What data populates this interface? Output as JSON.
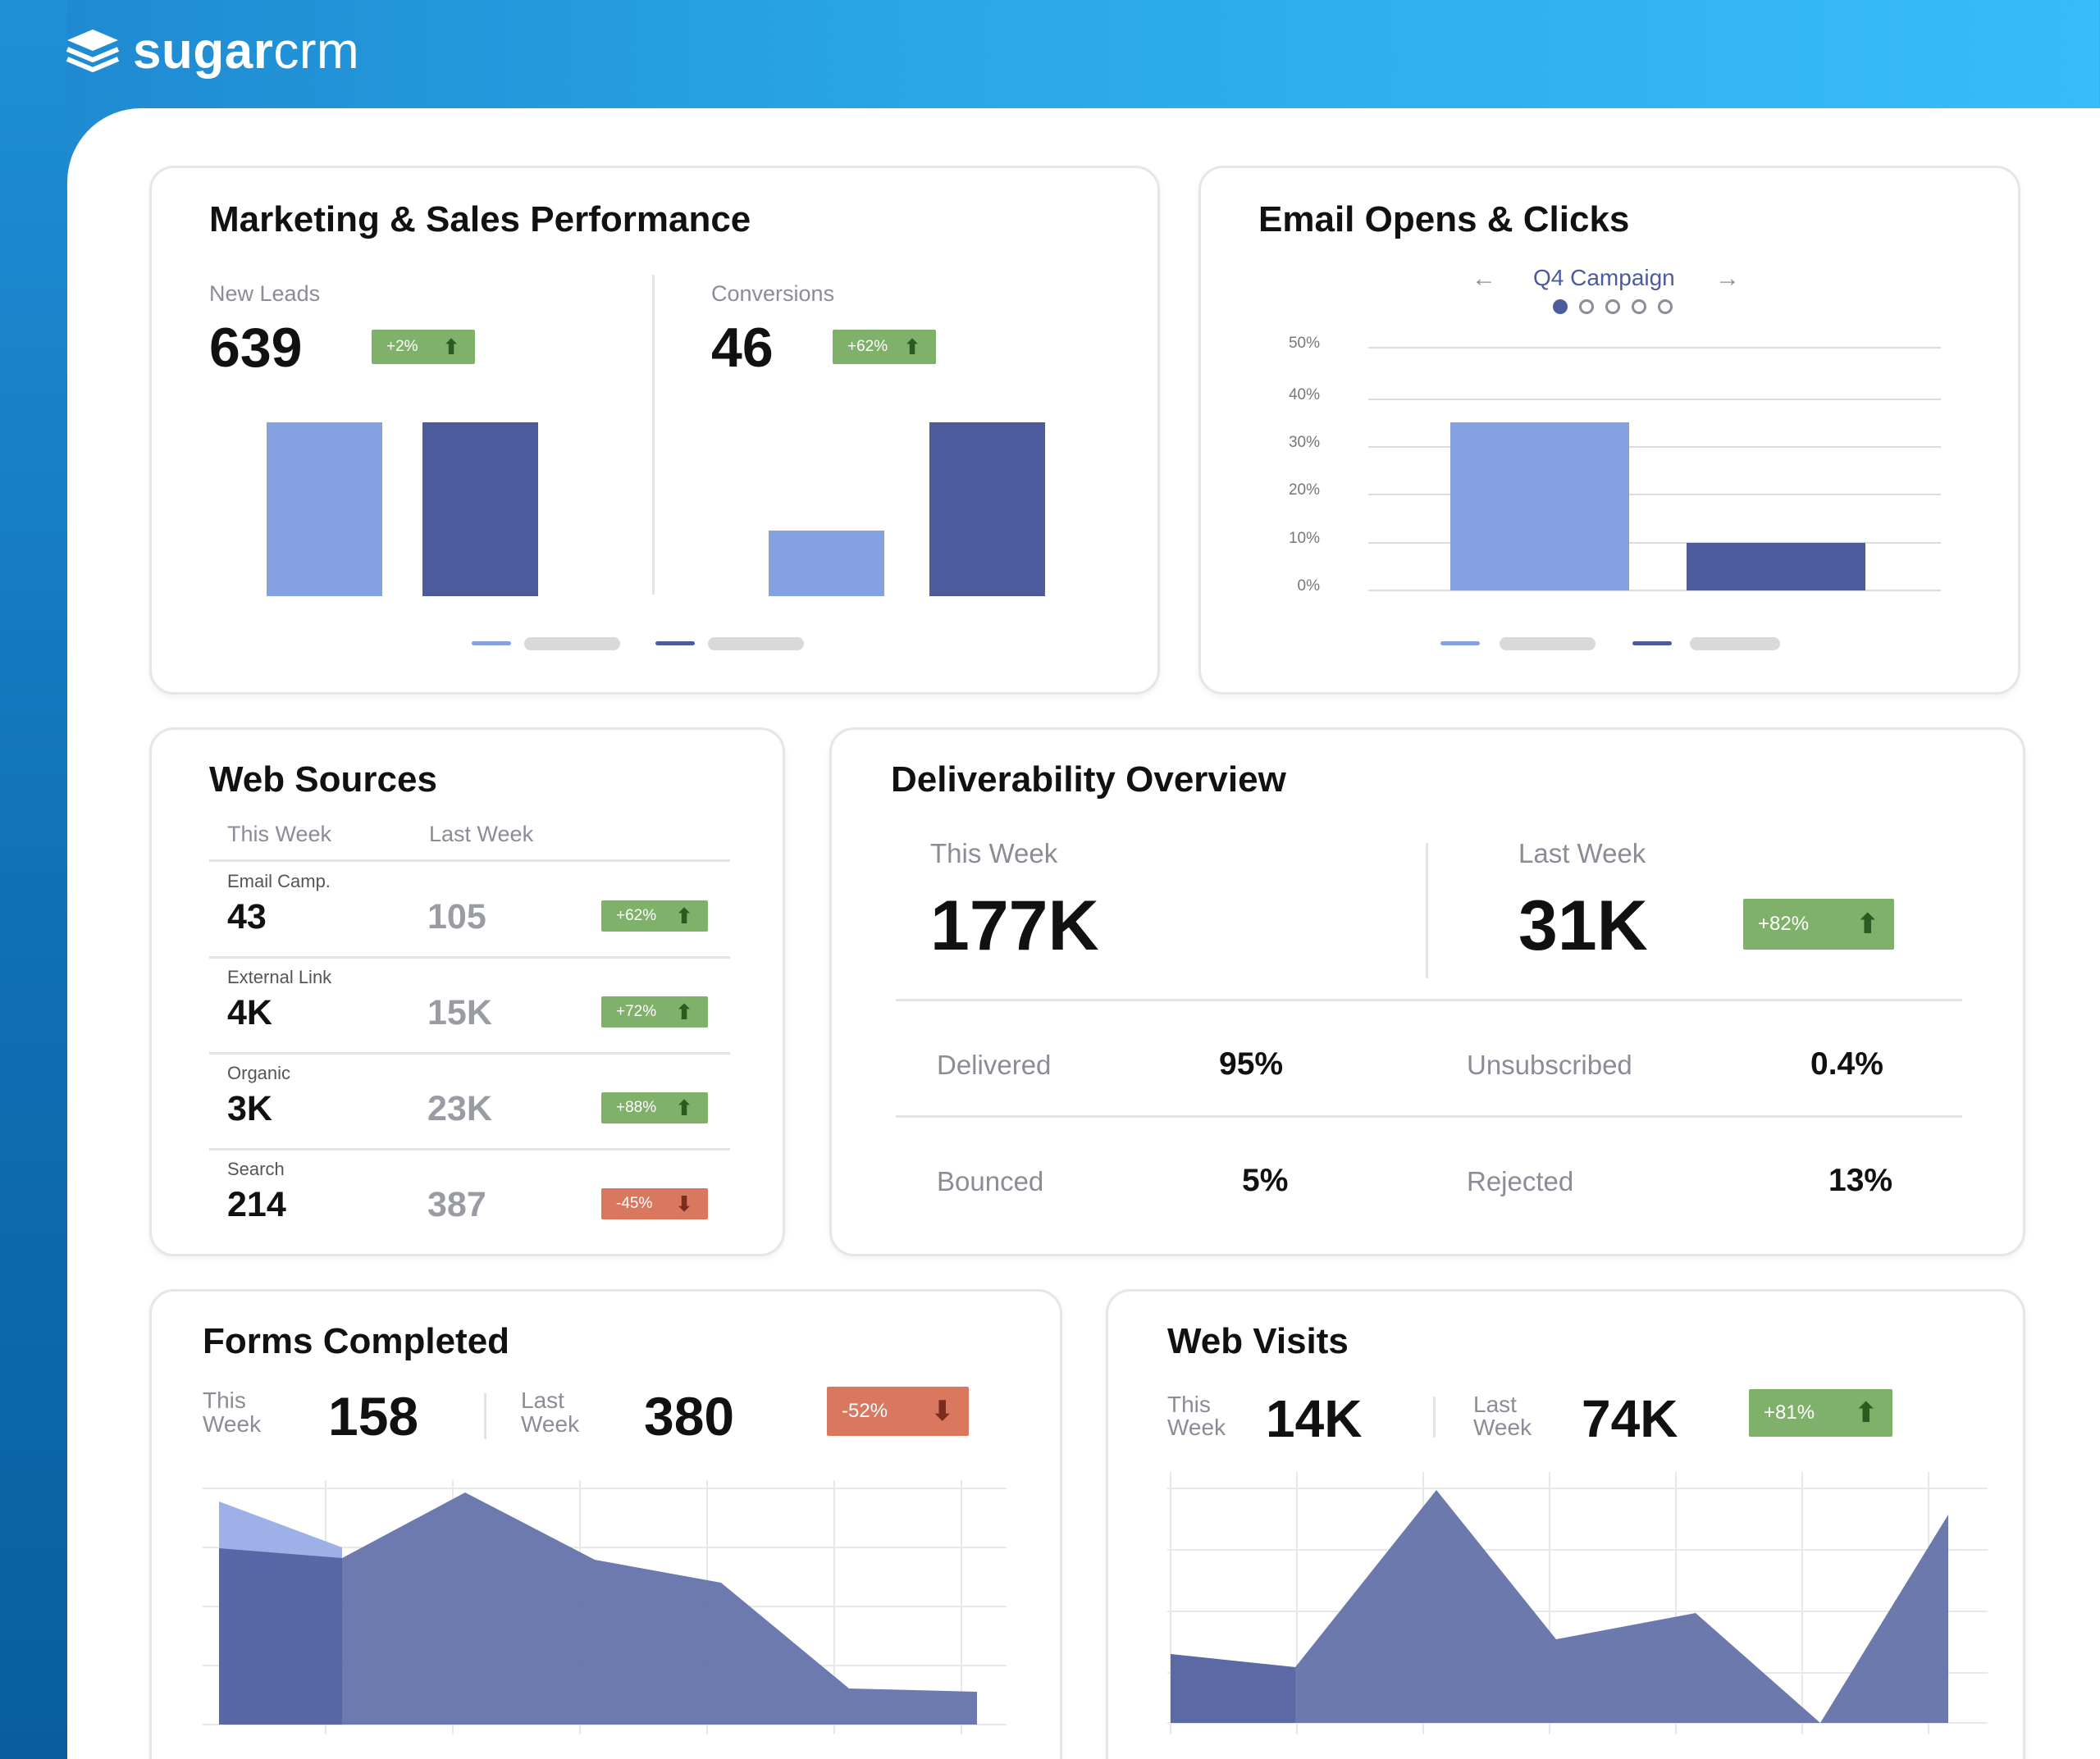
{
  "brand": {
    "name_bold": "sugar",
    "name_light": "crm",
    "logo_icon": "stack-layers-icon"
  },
  "marketing": {
    "title": "Marketing & Sales Performance",
    "new_leads": {
      "label": "New Leads",
      "value": "639",
      "change": "+2%"
    },
    "conversions": {
      "label": "Conversions",
      "value": "46",
      "change": "+62%"
    },
    "chart_data": {
      "type": "bar",
      "groups": [
        "New Leads",
        "Conversions"
      ],
      "series": [
        {
          "color": "#86a1e2",
          "relative_heights": [
            0.81,
            0.31
          ]
        },
        {
          "color": "#4c5b9b",
          "relative_heights": [
            0.81,
            0.81
          ]
        }
      ]
    }
  },
  "email": {
    "title": "Email Opens & Clicks",
    "campaign": "Q4 Campaign",
    "pager": {
      "pages": 5,
      "active": 1
    },
    "chart_data": {
      "type": "bar",
      "yticks": [
        "50%",
        "40%",
        "30%",
        "20%",
        "10%",
        "0%"
      ],
      "ylim": [
        0,
        50
      ],
      "categories": [
        "",
        ""
      ],
      "values": [
        35,
        10
      ],
      "colors": [
        "#86a1e2",
        "#4c5b9b"
      ]
    }
  },
  "web_sources": {
    "title": "Web Sources",
    "col_this": "This Week",
    "col_last": "Last Week",
    "rows": [
      {
        "source": "Email Camp.",
        "this": "43",
        "last": "105",
        "change": "+62%",
        "dir": "up"
      },
      {
        "source": "External Link",
        "this": "4K",
        "last": "15K",
        "change": "+72%",
        "dir": "up"
      },
      {
        "source": "Organic",
        "this": "3K",
        "last": "23K",
        "change": "+88%",
        "dir": "up"
      },
      {
        "source": "Search",
        "this": "214",
        "last": "387",
        "change": "-45%",
        "dir": "down"
      }
    ]
  },
  "deliverability": {
    "title": "Deliverability Overview",
    "this_label": "This Week",
    "this_value": "177K",
    "last_label": "Last Week",
    "last_value": "31K",
    "change": "+82%",
    "stats": {
      "delivered_label": "Delivered",
      "delivered_value": "95%",
      "unsub_label": "Unsubscribed",
      "unsub_value": "0.4%",
      "bounced_label": "Bounced",
      "bounced_value": "5%",
      "rejected_label": "Rejected",
      "rejected_value": "13%"
    }
  },
  "forms": {
    "title": "Forms Completed",
    "this_label_1": "This",
    "this_label_2": "Week",
    "this_value": "158",
    "last_label_1": "Last",
    "last_label_2": "Week",
    "last_value": "380",
    "change": "-52%",
    "chart_data": {
      "type": "area",
      "series": [
        {
          "color": "#86a1e2",
          "values": [
            0.96,
            0.72
          ]
        },
        {
          "color": "#5a6aa6",
          "values": [
            0.74,
            0.7,
            1.0,
            0.74,
            0.64,
            0.16,
            0.14
          ]
        }
      ]
    }
  },
  "visits": {
    "title": "Web Visits",
    "this_label_1": "This",
    "this_label_2": "Week",
    "this_value": "14K",
    "last_label_1": "Last",
    "last_label_2": "Week",
    "last_value": "74K",
    "change": "+81%",
    "chart_data": {
      "type": "area",
      "series": [
        {
          "color": "#5a6aa6",
          "values": [
            0.38,
            0.33,
            1.0,
            0.48,
            0.6,
            0.04,
            0.84
          ]
        }
      ]
    }
  }
}
